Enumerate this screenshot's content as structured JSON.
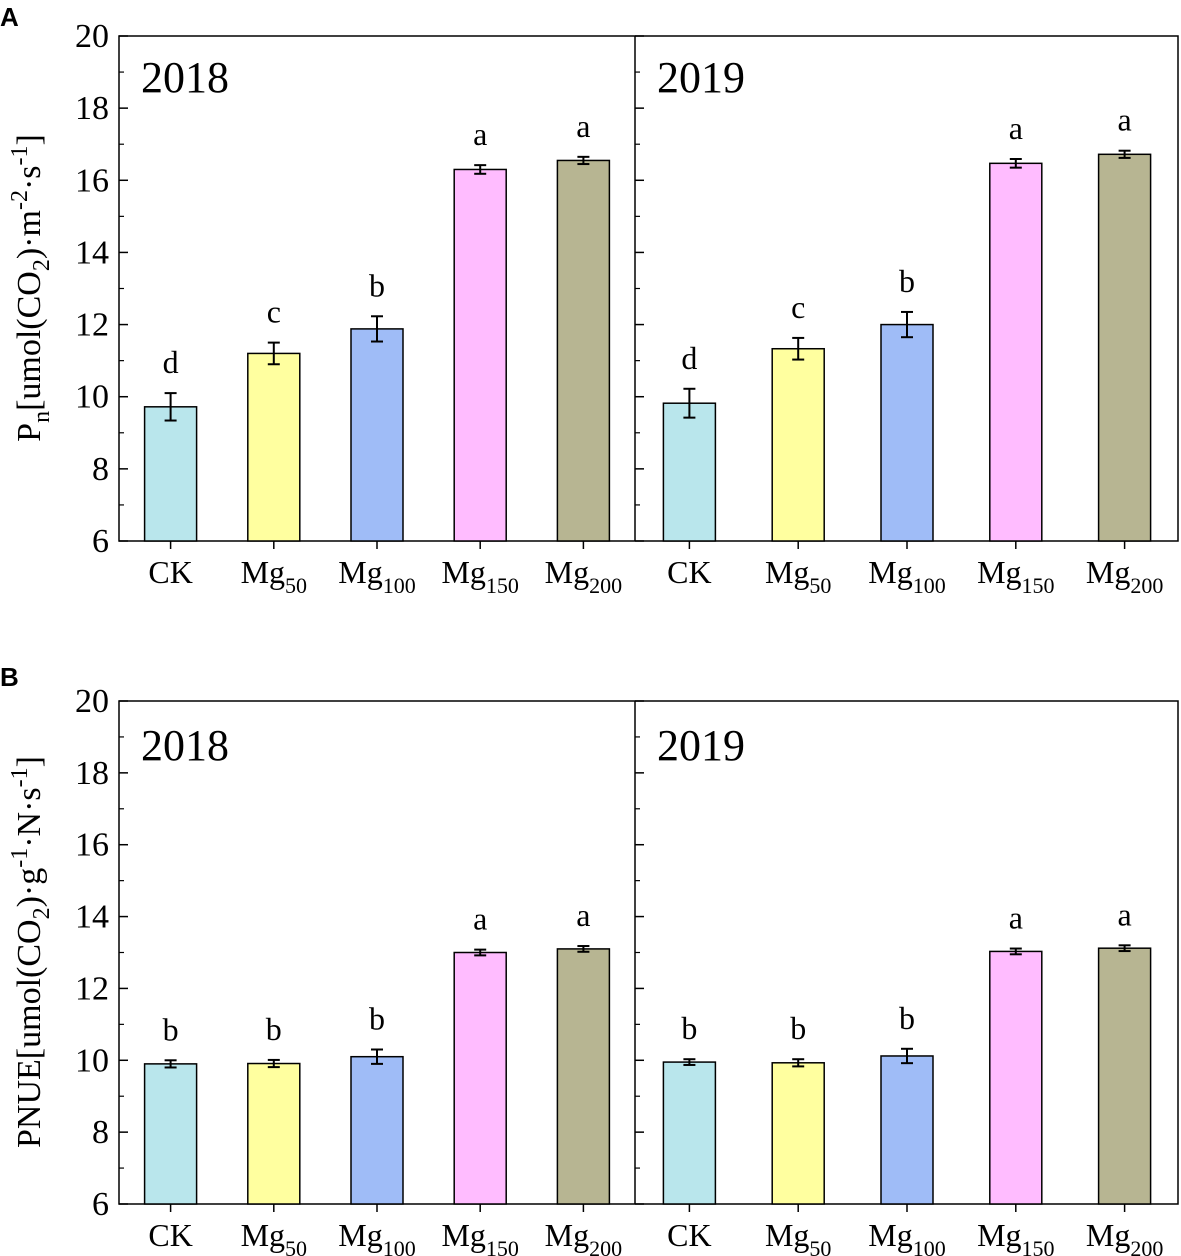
{
  "chart_data": [
    {
      "panel": "A",
      "type": "bar",
      "ylabel": {
        "main": "P",
        "sub": "n",
        "unit": "[umol(CO",
        "unit_sub": "2",
        "unit_rest": ")·m",
        "sup1": "-2",
        "mid": "·s",
        "sup2": "-1",
        "end": "]"
      },
      "ylim": [
        6,
        20
      ],
      "yticks": [
        6,
        8,
        10,
        12,
        14,
        16,
        18,
        20
      ],
      "categories": [
        {
          "base": "CK",
          "sub": ""
        },
        {
          "base": "Mg",
          "sub": "50"
        },
        {
          "base": "Mg",
          "sub": "100"
        },
        {
          "base": "Mg",
          "sub": "150"
        },
        {
          "base": "Mg",
          "sub": "200"
        }
      ],
      "colors": [
        "#b9e6ec",
        "#ffff9f",
        "#9fbcf7",
        "#ffbcff",
        "#b7b592"
      ],
      "facets": [
        {
          "year": "2018",
          "values": [
            9.72,
            11.2,
            11.88,
            16.3,
            16.55
          ],
          "errors": [
            0.38,
            0.3,
            0.35,
            0.12,
            0.1
          ],
          "letters": [
            "d",
            "c",
            "b",
            "a",
            "a"
          ]
        },
        {
          "year": "2019",
          "values": [
            9.82,
            11.33,
            12.0,
            16.47,
            16.72
          ],
          "errors": [
            0.4,
            0.3,
            0.35,
            0.12,
            0.1
          ],
          "letters": [
            "d",
            "c",
            "b",
            "a",
            "a"
          ]
        }
      ]
    },
    {
      "panel": "B",
      "type": "bar",
      "ylabel": {
        "main": "PNUE",
        "sub": "",
        "unit": "[umol(CO",
        "unit_sub": "2",
        "unit_rest": ")·g",
        "sup1": "-1",
        "mid": "·N·s",
        "sup2": "-1",
        "end": "]"
      },
      "ylim": [
        6,
        20
      ],
      "yticks": [
        6,
        8,
        10,
        12,
        14,
        16,
        18,
        20
      ],
      "categories": [
        {
          "base": "CK",
          "sub": ""
        },
        {
          "base": "Mg",
          "sub": "50"
        },
        {
          "base": "Mg",
          "sub": "100"
        },
        {
          "base": "Mg",
          "sub": "150"
        },
        {
          "base": "Mg",
          "sub": "200"
        }
      ],
      "colors": [
        "#b9e6ec",
        "#ffff9f",
        "#9fbcf7",
        "#ffbcff",
        "#b7b592"
      ],
      "facets": [
        {
          "year": "2018",
          "values": [
            9.9,
            9.91,
            10.1,
            13.0,
            13.1
          ],
          "errors": [
            0.1,
            0.1,
            0.2,
            0.08,
            0.08
          ],
          "letters": [
            "b",
            "b",
            "b",
            "a",
            "a"
          ]
        },
        {
          "year": "2019",
          "values": [
            9.95,
            9.93,
            10.12,
            13.03,
            13.12
          ],
          "errors": [
            0.08,
            0.1,
            0.2,
            0.08,
            0.08
          ],
          "letters": [
            "b",
            "b",
            "b",
            "a",
            "a"
          ]
        }
      ]
    }
  ]
}
